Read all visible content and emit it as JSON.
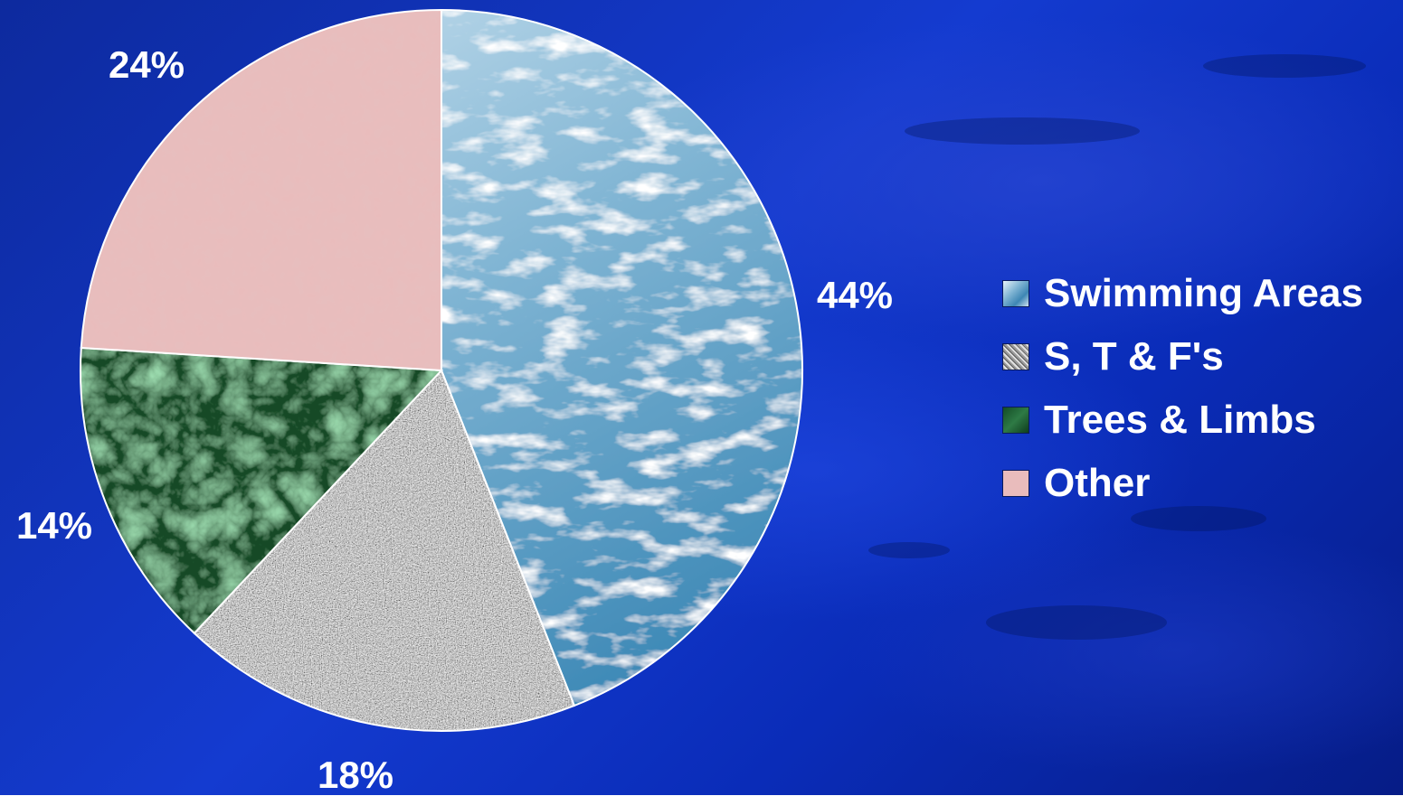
{
  "chart_data": {
    "type": "pie",
    "title": "",
    "slices": [
      {
        "label": "Swimming Areas",
        "value": 44,
        "display": "44%",
        "color": "#7fb4d3"
      },
      {
        "label": "S, T & F's",
        "value": 18,
        "display": "18%",
        "color": "#b5b5b5"
      },
      {
        "label": "Trees & Limbs",
        "value": 14,
        "display": "14%",
        "color": "#1f5c32"
      },
      {
        "label": "Other",
        "value": 24,
        "display": "24%",
        "color": "#e9bcbc"
      }
    ],
    "legend_position": "right"
  },
  "colors": {
    "background": "#1238c4",
    "text": "#ffffff"
  }
}
